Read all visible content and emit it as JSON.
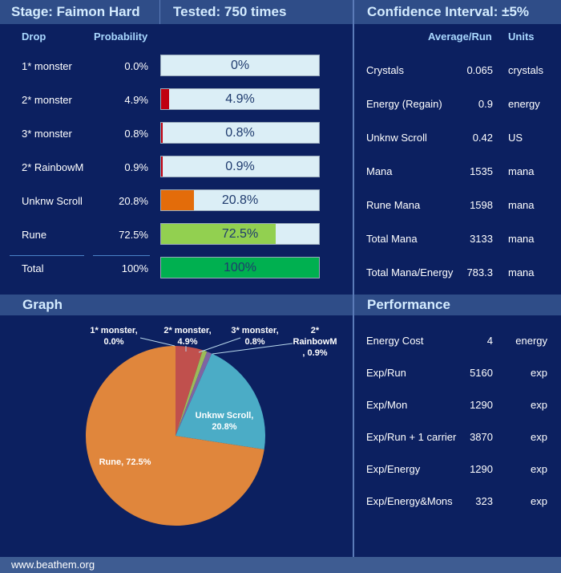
{
  "header": {
    "stage": "Stage: Faimon Hard",
    "tested": "Tested: 750 times",
    "confidence": "Confidence Interval: ±5%"
  },
  "drops": {
    "col_drop": "Drop",
    "col_prob": "Probability",
    "rows": [
      {
        "name": "1* monster",
        "prob": "0.0%",
        "bar_label": "0%",
        "fill": 0.0,
        "color": "#c0000f"
      },
      {
        "name": "2* monster",
        "prob": "4.9%",
        "bar_label": "4.9%",
        "fill": 0.049,
        "color": "#c0000f"
      },
      {
        "name": "3* monster",
        "prob": "0.8%",
        "bar_label": "0.8%",
        "fill": 0.008,
        "color": "#c0000f"
      },
      {
        "name": "2* RainbowM",
        "prob": "0.9%",
        "bar_label": "0.9%",
        "fill": 0.009,
        "color": "#c0000f"
      },
      {
        "name": "Unknw Scroll",
        "prob": "20.8%",
        "bar_label": "20.8%",
        "fill": 0.208,
        "color": "#e36c0a"
      },
      {
        "name": "Rune",
        "prob": "72.5%",
        "bar_label": "72.5%",
        "fill": 0.725,
        "color": "#92d050"
      }
    ],
    "total": {
      "name": "Total",
      "prob": "100%",
      "bar_label": "100%",
      "fill": 1.0,
      "color": "#00b050"
    }
  },
  "averages": {
    "col_avg": "Average/Run",
    "col_units": "Units",
    "rows": [
      {
        "name": "Crystals",
        "value": "0.065",
        "unit": "crystals"
      },
      {
        "name": "Energy (Regain)",
        "value": "0.9",
        "unit": "energy"
      },
      {
        "name": "Unknw Scroll",
        "value": "0.42",
        "unit": "US"
      },
      {
        "name": "Mana",
        "value": "1535",
        "unit": "mana"
      },
      {
        "name": "Rune Mana",
        "value": "1598",
        "unit": "mana"
      },
      {
        "name": "Total Mana",
        "value": "3133",
        "unit": "mana"
      },
      {
        "name": "Total Mana/Energy",
        "value": "783.3",
        "unit": "mana"
      }
    ]
  },
  "graph": {
    "title": "Graph",
    "slices": [
      {
        "label": "1* monster,",
        "label2": "0.0%",
        "value": 0.0,
        "color": "#c0504d"
      },
      {
        "label": "2* monster,",
        "label2": "4.9%",
        "value": 4.9,
        "color": "#c0504d"
      },
      {
        "label": "3* monster,",
        "label2": "0.8%",
        "value": 0.8,
        "color": "#9bbb59"
      },
      {
        "label": "2*",
        "label2": "RainbowM",
        "label3": ", 0.9%",
        "value": 0.9,
        "color": "#8064a2"
      },
      {
        "label": "Unknw Scroll,",
        "label2": "20.8%",
        "value": 20.8,
        "color": "#4bacc6"
      },
      {
        "label": "Rune, 72.5%",
        "value": 72.5,
        "color": "#e0863c"
      }
    ]
  },
  "performance": {
    "title": "Performance",
    "rows": [
      {
        "name": "Energy Cost",
        "value": "4",
        "unit": "energy"
      },
      {
        "name": "Exp/Run",
        "value": "5160",
        "unit": "exp"
      },
      {
        "name": "Exp/Mon",
        "value": "1290",
        "unit": "exp"
      },
      {
        "name": "Exp/Run + 1 carrier",
        "value": "3870",
        "unit": "exp"
      },
      {
        "name": "Exp/Energy",
        "value": "1290",
        "unit": "exp"
      },
      {
        "name": "Exp/Energy&Mons",
        "value": "323",
        "unit": "exp"
      }
    ]
  },
  "footer": "www.beathem.org"
}
